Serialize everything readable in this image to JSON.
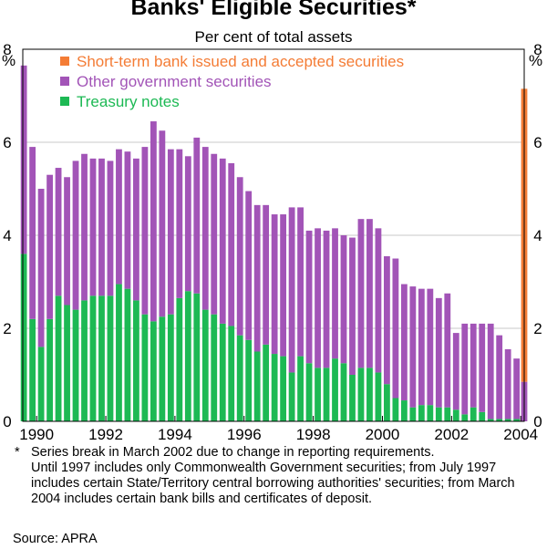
{
  "chart_data": {
    "type": "bar",
    "stacked": true,
    "title": "Banks' Eligible Securities*",
    "subtitle": "Per cent of total assets",
    "y_unit_left": "%",
    "y_unit_right": "%",
    "ylim": [
      0,
      8
    ],
    "yticks": [
      "0",
      "2",
      "4",
      "6",
      "8"
    ],
    "xlim": [
      1989.6,
      2004.1
    ],
    "xticks": [
      "1990",
      "1992",
      "1994",
      "1996",
      "1998",
      "2000",
      "2002",
      "2004"
    ],
    "x": [
      1989.63,
      1989.88,
      1990.13,
      1990.38,
      1990.63,
      1990.88,
      1991.13,
      1991.38,
      1991.63,
      1991.88,
      1992.13,
      1992.38,
      1992.63,
      1992.88,
      1993.13,
      1993.38,
      1993.63,
      1993.88,
      1994.13,
      1994.38,
      1994.63,
      1994.88,
      1995.13,
      1995.38,
      1995.63,
      1995.88,
      1996.13,
      1996.38,
      1996.63,
      1996.88,
      1997.13,
      1997.38,
      1997.63,
      1997.88,
      1998.13,
      1998.38,
      1998.63,
      1998.88,
      1999.13,
      1999.38,
      1999.63,
      1999.88,
      2000.13,
      2000.38,
      2000.63,
      2000.88,
      2001.13,
      2001.38,
      2001.63,
      2001.88,
      2002.13,
      2002.38,
      2002.63,
      2002.88,
      2003.13,
      2003.38,
      2003.63,
      2003.88
    ],
    "series": [
      {
        "name": "Treasury notes",
        "color": "#1db954",
        "values": [
          3.6,
          2.2,
          1.6,
          2.2,
          2.7,
          2.5,
          2.4,
          2.6,
          2.7,
          2.7,
          2.7,
          2.95,
          2.85,
          2.6,
          2.3,
          2.15,
          2.25,
          2.3,
          2.65,
          2.8,
          2.75,
          2.4,
          2.3,
          2.1,
          2.05,
          1.85,
          1.75,
          1.5,
          1.65,
          1.45,
          1.4,
          1.05,
          1.4,
          1.25,
          1.15,
          1.15,
          1.35,
          1.25,
          1.0,
          1.15,
          1.15,
          1.05,
          0.8,
          0.5,
          0.45,
          0.3,
          0.35,
          0.35,
          0.3,
          0.3,
          0.25,
          0.15,
          0.3,
          0.2,
          0.05,
          0.05,
          0.05,
          0.05
        ]
      },
      {
        "name": "Other government securities",
        "color": "#a254b7",
        "values": [
          4.05,
          3.7,
          3.4,
          3.1,
          2.75,
          2.75,
          3.2,
          3.15,
          2.95,
          2.95,
          2.9,
          2.9,
          2.95,
          3.05,
          3.6,
          4.3,
          4.0,
          3.55,
          3.2,
          2.9,
          3.35,
          3.5,
          3.45,
          3.55,
          3.5,
          3.4,
          3.2,
          3.15,
          3.0,
          3.0,
          3.05,
          3.55,
          3.2,
          2.85,
          3.0,
          2.95,
          2.8,
          2.75,
          2.95,
          3.2,
          3.2,
          3.1,
          2.75,
          3.0,
          2.5,
          2.6,
          2.5,
          2.5,
          2.35,
          2.45,
          1.65,
          1.95,
          1.8,
          1.9,
          2.05,
          1.8,
          1.5,
          1.3
        ]
      },
      {
        "name": "Short-term bank issued and accepted securities",
        "color": "#f47c35",
        "values": [
          0,
          0,
          0,
          0,
          0,
          0,
          0,
          0,
          0,
          0,
          0,
          0,
          0,
          0,
          0,
          0,
          0,
          0,
          0,
          0,
          0,
          0,
          0,
          0,
          0,
          0,
          0,
          0,
          0,
          0,
          0,
          0,
          0,
          0,
          0,
          0,
          0,
          0,
          0,
          0,
          0,
          0,
          0,
          0,
          0,
          0,
          0,
          0,
          0,
          0,
          0,
          0,
          0,
          0,
          0,
          0,
          0,
          0
        ]
      }
    ],
    "extra_bar": {
      "x": 2004.1,
      "stack": [
        {
          "series": "Other government securities",
          "value": 0.85
        },
        {
          "series": "Short-term bank issued and accepted securities",
          "value": 6.3
        }
      ]
    },
    "legend": [
      "Short-term bank issued and accepted securities",
      "Other government securities",
      "Treasury notes"
    ],
    "legend_position": "top-left"
  },
  "notes": {
    "marker": "*",
    "line1": "Series break in March 2002 due to change in reporting requirements.",
    "rest": "Until 1997 includes only Commonwealth Government securities; from July 1997 includes certain State/Territory central borrowing authorities' securities; from March 2004 includes certain bank bills and certificates of deposit."
  },
  "source": "Source: APRA"
}
